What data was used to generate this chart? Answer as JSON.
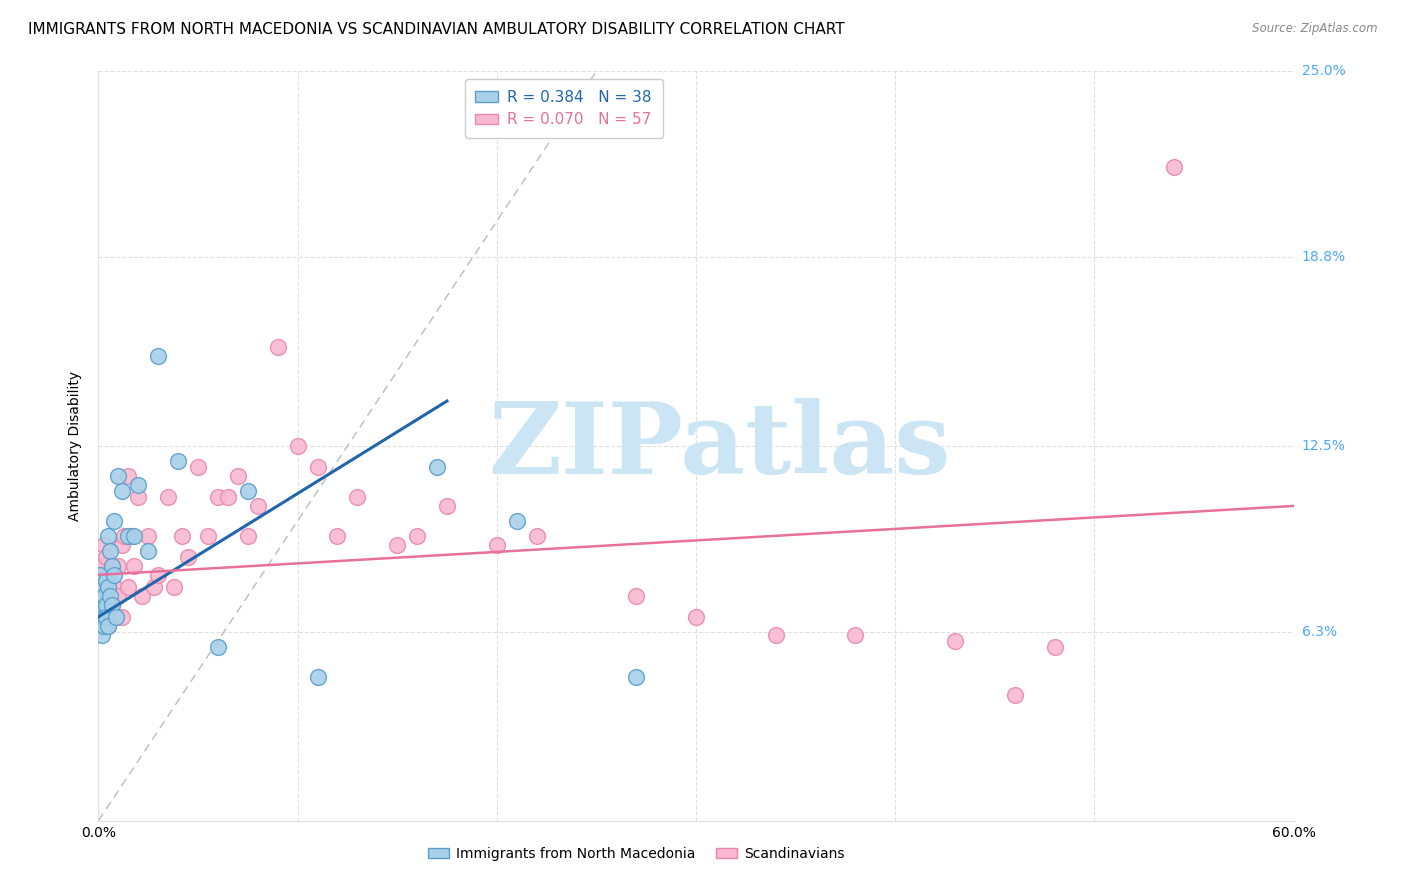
{
  "title": "IMMIGRANTS FROM NORTH MACEDONIA VS SCANDINAVIAN AMBULATORY DISABILITY CORRELATION CHART",
  "source": "Source: ZipAtlas.com",
  "ylabel": "Ambulatory Disability",
  "xmin": 0.0,
  "xmax": 0.6,
  "ymin": 0.0,
  "ymax": 0.25,
  "yticks": [
    0.063,
    0.125,
    0.188,
    0.25
  ],
  "ytick_labels": [
    "6.3%",
    "12.5%",
    "18.8%",
    "25.0%"
  ],
  "xticks": [
    0.0,
    0.1,
    0.2,
    0.3,
    0.4,
    0.5,
    0.6
  ],
  "xtick_labels": [
    "0.0%",
    "",
    "",
    "",
    "",
    "",
    "60.0%"
  ],
  "series1_color": "#a8d0ea",
  "series2_color": "#f9b8d0",
  "series1_edge": "#5a9ec9",
  "series2_edge": "#e888b0",
  "blue_line_color": "#2166ac",
  "pink_line_color": "#e8719a",
  "diagonal_line_color": "#bbbbbb",
  "watermark_color": "#cce5f5",
  "watermark_text": "ZIPatlas",
  "background_color": "#ffffff",
  "grid_color": "#e0e0e0",
  "title_fontsize": 11,
  "axis_label_fontsize": 10,
  "tick_fontsize": 10,
  "right_tick_color": "#4da6ff",
  "scatter1_x": [
    0.001,
    0.001,
    0.001,
    0.002,
    0.002,
    0.002,
    0.002,
    0.003,
    0.003,
    0.003,
    0.003,
    0.004,
    0.004,
    0.004,
    0.005,
    0.005,
    0.005,
    0.006,
    0.006,
    0.007,
    0.007,
    0.008,
    0.008,
    0.009,
    0.01,
    0.012,
    0.015,
    0.018,
    0.02,
    0.025,
    0.03,
    0.04,
    0.06,
    0.075,
    0.11,
    0.17,
    0.21,
    0.27
  ],
  "scatter1_y": [
    0.078,
    0.082,
    0.068,
    0.065,
    0.072,
    0.068,
    0.062,
    0.075,
    0.07,
    0.068,
    0.065,
    0.08,
    0.072,
    0.068,
    0.095,
    0.078,
    0.065,
    0.09,
    0.075,
    0.085,
    0.072,
    0.1,
    0.082,
    0.068,
    0.115,
    0.11,
    0.095,
    0.095,
    0.112,
    0.09,
    0.155,
    0.12,
    0.058,
    0.11,
    0.048,
    0.118,
    0.1,
    0.048
  ],
  "scatter2_x": [
    0.001,
    0.002,
    0.002,
    0.003,
    0.003,
    0.004,
    0.004,
    0.005,
    0.005,
    0.006,
    0.007,
    0.007,
    0.008,
    0.009,
    0.01,
    0.01,
    0.012,
    0.012,
    0.013,
    0.015,
    0.015,
    0.017,
    0.018,
    0.02,
    0.022,
    0.025,
    0.028,
    0.03,
    0.035,
    0.038,
    0.042,
    0.045,
    0.05,
    0.055,
    0.06,
    0.065,
    0.07,
    0.075,
    0.08,
    0.09,
    0.1,
    0.11,
    0.12,
    0.13,
    0.15,
    0.16,
    0.175,
    0.2,
    0.22,
    0.27,
    0.3,
    0.34,
    0.38,
    0.43,
    0.46,
    0.48,
    0.54
  ],
  "scatter2_y": [
    0.082,
    0.085,
    0.068,
    0.092,
    0.078,
    0.088,
    0.072,
    0.082,
    0.065,
    0.075,
    0.085,
    0.072,
    0.078,
    0.068,
    0.085,
    0.075,
    0.092,
    0.068,
    0.095,
    0.115,
    0.078,
    0.095,
    0.085,
    0.108,
    0.075,
    0.095,
    0.078,
    0.082,
    0.108,
    0.078,
    0.095,
    0.088,
    0.118,
    0.095,
    0.108,
    0.108,
    0.115,
    0.095,
    0.105,
    0.158,
    0.125,
    0.118,
    0.095,
    0.108,
    0.092,
    0.095,
    0.105,
    0.092,
    0.095,
    0.075,
    0.068,
    0.062,
    0.062,
    0.06,
    0.042,
    0.058,
    0.218
  ],
  "blue_line_x": [
    0.0,
    0.175
  ],
  "blue_line_y": [
    0.068,
    0.14
  ],
  "pink_line_x": [
    0.0,
    0.6
  ],
  "pink_line_y": [
    0.082,
    0.105
  ],
  "diag_line_x": [
    0.0,
    0.25
  ],
  "diag_line_y": [
    0.0,
    0.25
  ]
}
